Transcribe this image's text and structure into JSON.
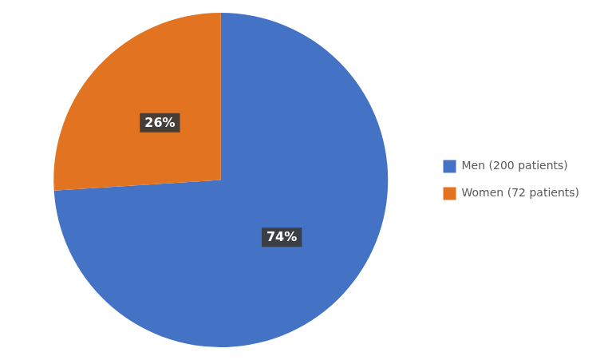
{
  "chart_data": {
    "type": "pie",
    "categories": [
      "Men (200 patients)",
      "Women (72 patients)"
    ],
    "values": [
      74,
      26
    ],
    "value_labels": [
      "74%",
      "26%"
    ],
    "colors": [
      "#4472C4",
      "#E27421"
    ],
    "data_labels": true,
    "legend": "right"
  }
}
